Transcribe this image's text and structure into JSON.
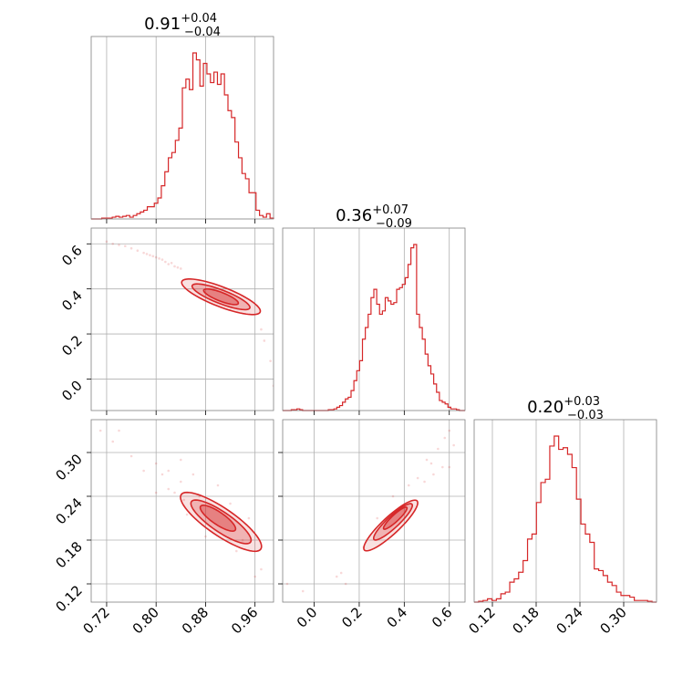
{
  "chart_data": {
    "type": "corner",
    "color": "#d62728",
    "grid": true,
    "parameters": [
      {
        "title": {
          "median": "0.91",
          "plus": "+0.04",
          "minus": "−0.04"
        },
        "range": [
          0.695,
          0.99
        ],
        "ticks": [
          0.72,
          0.8,
          0.88,
          0.96
        ],
        "tick_labels": [
          "0.72",
          "0.80",
          "0.88",
          "0.96"
        ],
        "hist": [
          0,
          0,
          0,
          0.005,
          0.005,
          0.005,
          0.01,
          0.015,
          0.01,
          0.015,
          0.02,
          0.01,
          0.02,
          0.03,
          0.04,
          0.05,
          0.07,
          0.07,
          0.09,
          0.12,
          0.19,
          0.27,
          0.35,
          0.38,
          0.45,
          0.52,
          0.75,
          0.8,
          0.74,
          0.95,
          0.91,
          0.76,
          0.89,
          0.83,
          0.78,
          0.84,
          0.77,
          0.83,
          0.71,
          0.62,
          0.58,
          0.44,
          0.35,
          0.26,
          0.23,
          0.15,
          0.15,
          0.05,
          0.02,
          0.01,
          0.03,
          0.005
        ]
      },
      {
        "title": {
          "median": "0.36",
          "plus": "+0.07",
          "minus": "−0.09"
        },
        "range": [
          -0.14,
          0.67
        ],
        "ticks": [
          0.0,
          0.2,
          0.4,
          0.6
        ],
        "tick_labels": [
          "0.0",
          "0.2",
          "0.4",
          "0.6"
        ],
        "hist": [
          0,
          0,
          0,
          0.005,
          0.005,
          0.01,
          0.005,
          0,
          0,
          0,
          0,
          0,
          0,
          0,
          0,
          0,
          0.005,
          0.005,
          0.01,
          0.02,
          0.03,
          0.05,
          0.07,
          0.08,
          0.12,
          0.18,
          0.24,
          0.3,
          0.43,
          0.5,
          0.58,
          0.68,
          0.73,
          0.64,
          0.58,
          0.6,
          0.68,
          0.66,
          0.64,
          0.65,
          0.73,
          0.74,
          0.76,
          0.8,
          0.88,
          0.98,
          1.0,
          0.58,
          0.5,
          0.43,
          0.34,
          0.27,
          0.22,
          0.16,
          0.11,
          0.06,
          0.05,
          0.04,
          0.02,
          0.01,
          0.01,
          0.005,
          0,
          0
        ]
      },
      {
        "title": {
          "median": "0.20",
          "plus": "+0.03",
          "minus": "−0.03"
        },
        "range": [
          0.095,
          0.345
        ],
        "ticks": [
          0.12,
          0.18,
          0.24,
          0.3
        ],
        "tick_labels": [
          "0.12",
          "0.18",
          "0.24",
          "0.30"
        ],
        "hist": [
          0,
          0.005,
          0.01,
          0.02,
          0.01,
          0.02,
          0.05,
          0.06,
          0.12,
          0.14,
          0.18,
          0.25,
          0.38,
          0.41,
          0.6,
          0.72,
          0.74,
          0.94,
          1.0,
          0.92,
          0.93,
          0.89,
          0.81,
          0.62,
          0.47,
          0.41,
          0.36,
          0.2,
          0.19,
          0.16,
          0.12,
          0.1,
          0.06,
          0.04,
          0.04,
          0.03,
          0.01,
          0.01,
          0.01,
          0.005,
          0
        ]
      }
    ],
    "ylim_2d": [
      [
        -0.14,
        0.67
      ],
      [
        0.095,
        0.345
      ]
    ],
    "y_ticks_2d": [
      [
        -0.0,
        0.2,
        0.4,
        0.6
      ],
      [
        0.12,
        0.18,
        0.24,
        0.3
      ]
    ],
    "y_tick_labels_2d": [
      [
        "0.0",
        "0.2",
        "0.4",
        "0.6"
      ],
      [
        "0.12",
        "0.18",
        "0.24",
        "0.30"
      ]
    ],
    "scatter": {
      "p1_vs_p0": [
        [
          0.72,
          0.61
        ],
        [
          0.73,
          0.6
        ],
        [
          0.74,
          0.595
        ],
        [
          0.75,
          0.59
        ],
        [
          0.76,
          0.58
        ],
        [
          0.77,
          0.57
        ],
        [
          0.78,
          0.56
        ],
        [
          0.785,
          0.555
        ],
        [
          0.79,
          0.55
        ],
        [
          0.8,
          0.54
        ],
        [
          0.81,
          0.53
        ],
        [
          0.815,
          0.52
        ],
        [
          0.82,
          0.51
        ],
        [
          0.83,
          0.5
        ],
        [
          0.835,
          0.495
        ],
        [
          0.84,
          0.49
        ],
        [
          0.985,
          0.08
        ],
        [
          0.99,
          -0.03
        ],
        [
          0.975,
          0.17
        ],
        [
          0.97,
          0.22
        ],
        [
          0.795,
          0.545
        ],
        [
          0.805,
          0.535
        ],
        [
          0.825,
          0.515
        ]
      ],
      "p2_vs_p0": [
        [
          0.71,
          0.33
        ],
        [
          0.73,
          0.315
        ],
        [
          0.74,
          0.33
        ],
        [
          0.76,
          0.295
        ],
        [
          0.78,
          0.275
        ],
        [
          0.8,
          0.285
        ],
        [
          0.81,
          0.27
        ],
        [
          0.82,
          0.275
        ],
        [
          0.84,
          0.29
        ],
        [
          0.84,
          0.26
        ],
        [
          0.8,
          0.245
        ],
        [
          0.83,
          0.245
        ],
        [
          0.86,
          0.27
        ],
        [
          0.87,
          0.24
        ],
        [
          0.9,
          0.255
        ],
        [
          0.92,
          0.23
        ],
        [
          0.95,
          0.21
        ],
        [
          0.97,
          0.14
        ],
        [
          0.85,
          0.215
        ],
        [
          0.88,
          0.185
        ],
        [
          0.93,
          0.165
        ],
        [
          0.96,
          0.13
        ],
        [
          0.94,
          0.18
        ],
        [
          0.82,
          0.25
        ],
        [
          0.845,
          0.235
        ]
      ],
      "p2_vs_p1": [
        [
          -0.12,
          0.12
        ],
        [
          -0.05,
          0.11
        ],
        [
          0.1,
          0.13
        ],
        [
          0.12,
          0.135
        ],
        [
          0.58,
          0.32
        ],
        [
          0.6,
          0.33
        ],
        [
          0.62,
          0.31
        ],
        [
          0.55,
          0.305
        ],
        [
          0.57,
          0.28
        ],
        [
          0.6,
          0.28
        ],
        [
          0.53,
          0.27
        ],
        [
          0.5,
          0.29
        ],
        [
          0.49,
          0.26
        ],
        [
          0.14,
          0.12
        ],
        [
          0.35,
          0.24
        ],
        [
          0.42,
          0.255
        ],
        [
          0.46,
          0.265
        ],
        [
          0.22,
          0.17
        ],
        [
          0.28,
          0.21
        ],
        [
          0.52,
          0.285
        ]
      ]
    },
    "contours": {
      "p1_vs_p0": [
        {
          "cx": 0.905,
          "cy": 0.365,
          "angle": -0.37,
          "a": 0.068,
          "b": 0.016,
          "fill": 0.25
        },
        {
          "cx": 0.905,
          "cy": 0.365,
          "angle": -0.37,
          "a": 0.05,
          "b": 0.011,
          "fill": 0.45
        },
        {
          "cx": 0.905,
          "cy": 0.365,
          "angle": -0.37,
          "a": 0.03,
          "b": 0.007,
          "fill": 0.65
        }
      ],
      "p2_vs_p0": [
        {
          "cx": 0.905,
          "cy": 0.205,
          "angle": -0.6,
          "a": 0.078,
          "b": 0.022,
          "fill": 0.25
        },
        {
          "cx": 0.905,
          "cy": 0.205,
          "angle": -0.6,
          "a": 0.058,
          "b": 0.016,
          "fill": 0.45
        },
        {
          "cx": 0.9,
          "cy": 0.21,
          "angle": -0.6,
          "a": 0.034,
          "b": 0.01,
          "fill": 0.65
        }
      ],
      "p2_vs_p1": [
        {
          "cx": 0.34,
          "cy": 0.2,
          "angle": 0.75,
          "a": 0.16,
          "b": 0.038,
          "fill": 0.25
        },
        {
          "cx": 0.35,
          "cy": 0.205,
          "angle": 0.75,
          "a": 0.115,
          "b": 0.026,
          "fill": 0.45
        },
        {
          "cx": 0.36,
          "cy": 0.21,
          "angle": 0.75,
          "a": 0.07,
          "b": 0.015,
          "fill": 0.65
        }
      ]
    }
  }
}
